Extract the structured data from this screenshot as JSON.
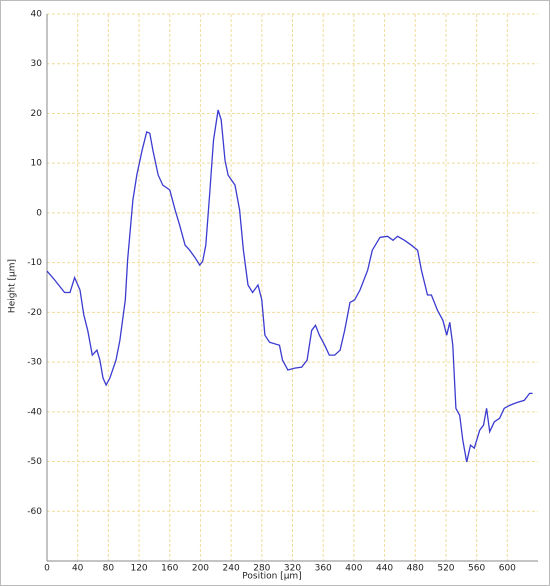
{
  "chart_data": {
    "type": "line",
    "xlabel": "Position [µm]",
    "ylabel": "Height [µm]",
    "x": [
      0,
      10,
      23,
      30,
      36,
      43,
      48,
      53,
      59,
      65,
      69,
      73,
      77,
      82,
      90,
      95,
      102,
      105,
      112,
      117,
      124,
      130,
      134,
      138,
      145,
      151,
      160,
      167,
      173,
      180,
      186,
      193,
      199,
      203,
      207,
      212,
      217,
      223,
      227,
      232,
      236,
      245,
      251,
      256,
      262,
      268,
      275,
      280,
      284,
      290,
      303,
      307,
      314,
      323,
      332,
      339,
      345,
      350,
      355,
      362,
      368,
      375,
      382,
      388,
      395,
      401,
      408,
      418,
      424,
      434,
      444,
      451,
      457,
      466,
      475,
      483,
      488,
      496,
      501,
      509,
      516,
      521,
      525,
      529,
      533,
      538,
      542,
      547,
      552,
      557,
      564,
      569,
      573,
      577,
      583,
      590,
      596,
      603,
      613,
      622,
      629,
      633
    ],
    "series": [
      {
        "name": "Height",
        "color": "#3b3bd0",
        "values": [
          -11.7,
          -13.5,
          -16,
          -16,
          -13,
          -15.5,
          -20.5,
          -23.6,
          -28.6,
          -27.6,
          -29.6,
          -33.2,
          -34.6,
          -33.2,
          -29.6,
          -25.6,
          -17.5,
          -9.5,
          2.6,
          7.6,
          12.6,
          16.3,
          16,
          12.6,
          7.6,
          5.6,
          4.6,
          0.6,
          -2.5,
          -6.5,
          -7.5,
          -9,
          -10.5,
          -9.7,
          -6.5,
          3.6,
          14.6,
          20.7,
          18.7,
          10.6,
          7.6,
          5.6,
          0.6,
          -7.5,
          -14.5,
          -16,
          -14.5,
          -17.5,
          -24.6,
          -26,
          -26.6,
          -29.6,
          -31.6,
          -31.2,
          -31,
          -29.6,
          -23.6,
          -22.6,
          -24.6,
          -26.6,
          -28.6,
          -28.6,
          -27.6,
          -23.6,
          -18,
          -17.5,
          -15.5,
          -11.5,
          -7.5,
          -4.9,
          -4.7,
          -5.5,
          -4.7,
          -5.5,
          -6.5,
          -7.5,
          -11.5,
          -16.5,
          -16.5,
          -19.6,
          -21.6,
          -24.6,
          -22,
          -26.6,
          -39.3,
          -40.7,
          -45.7,
          -50.1,
          -46.7,
          -47.3,
          -43.7,
          -42.7,
          -39.3,
          -44,
          -42,
          -41.3,
          -39.3,
          -38.7,
          -38.1,
          -37.7,
          -36.3,
          -36.3
        ]
      }
    ],
    "xlim": [
      0,
      640
    ],
    "ylim": [
      -70,
      40
    ],
    "xticks": [
      0,
      40,
      80,
      120,
      160,
      200,
      240,
      280,
      320,
      360,
      400,
      440,
      480,
      520,
      560,
      600
    ],
    "yticks": [
      -60,
      -50,
      -40,
      -30,
      -20,
      -10,
      0,
      10,
      20,
      30,
      40
    ],
    "grid": true
  }
}
